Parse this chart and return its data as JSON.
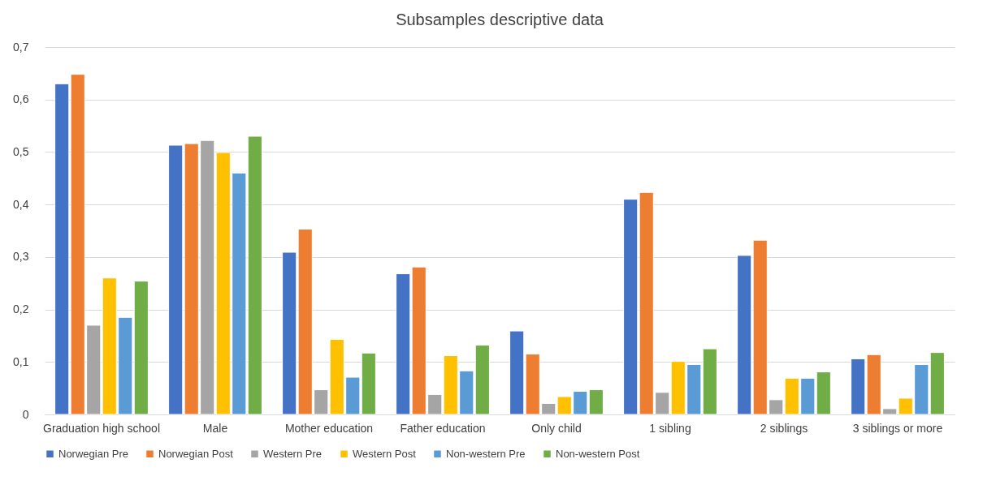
{
  "chart_data": {
    "type": "bar",
    "title": "Subsamples descriptive data",
    "categories": [
      "Graduation high school",
      "Male",
      "Mother education",
      "Father education",
      "Only child",
      "1 sibling",
      "2 siblings",
      "3 siblings or more"
    ],
    "series": [
      {
        "name": "Norwegian Pre",
        "color": "#4472c4",
        "values": [
          0.63,
          0.513,
          0.309,
          0.268,
          0.159,
          0.41,
          0.303,
          0.106
        ]
      },
      {
        "name": "Norwegian Post",
        "color": "#ed7d31",
        "values": [
          0.648,
          0.516,
          0.353,
          0.281,
          0.115,
          0.423,
          0.332,
          0.114
        ]
      },
      {
        "name": "Western Pre",
        "color": "#a5a5a5",
        "values": [
          0.17,
          0.522,
          0.047,
          0.038,
          0.021,
          0.042,
          0.028,
          0.011
        ]
      },
      {
        "name": "Western Post",
        "color": "#ffc000",
        "values": [
          0.26,
          0.499,
          0.143,
          0.112,
          0.034,
          0.101,
          0.069,
          0.031
        ]
      },
      {
        "name": "Non-western Pre",
        "color": "#5b9bd5",
        "values": [
          0.185,
          0.46,
          0.071,
          0.083,
          0.044,
          0.095,
          0.069,
          0.095
        ]
      },
      {
        "name": "Non-western Post",
        "color": "#70ad47",
        "values": [
          0.254,
          0.53,
          0.117,
          0.132,
          0.047,
          0.125,
          0.081,
          0.118
        ]
      }
    ],
    "ylim": [
      0,
      0.7
    ],
    "yticks": [
      0,
      {
        "value": 0.1,
        "label": "0,1"
      },
      {
        "value": 0.2,
        "label": "0,2"
      },
      {
        "value": 0.3,
        "label": "0,3"
      },
      {
        "value": 0.4,
        "label": "0,4"
      },
      {
        "value": 0.5,
        "label": "0,5"
      },
      {
        "value": 0.6,
        "label": "0,6"
      },
      {
        "value": 0.7,
        "label": "0,7"
      }
    ],
    "grid": "y",
    "legend": "bottom"
  }
}
